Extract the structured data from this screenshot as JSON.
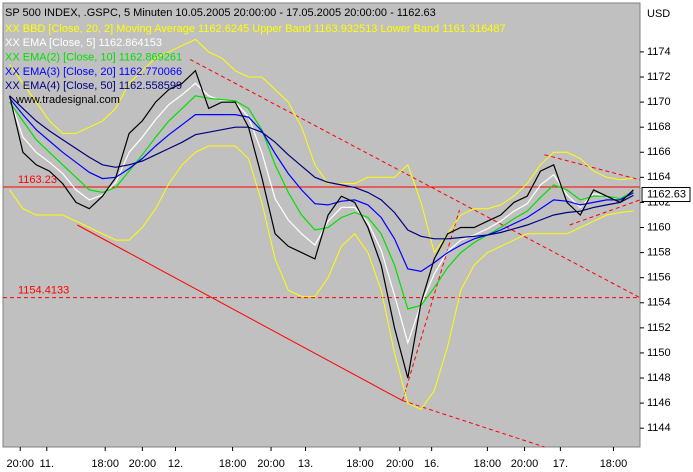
{
  "chart_data": {
    "type": "line",
    "title": "SP 500 INDEX, .GSPC, 5 Minuten   10.05.2005 20:00:00 - 17.05.2005 20:00:00 - 1162.63",
    "watermark": "www.tradesignal.com",
    "y_label": "USD",
    "xlim": [
      0,
      48
    ],
    "xticks": [
      {
        "value": 1.3,
        "label": "20:00"
      },
      {
        "value": 3.3,
        "label": "11."
      },
      {
        "value": 7.7,
        "label": "18:00"
      },
      {
        "value": 10.5,
        "label": "20:00"
      },
      {
        "value": 13,
        "label": "12."
      },
      {
        "value": 17.3,
        "label": "18:00"
      },
      {
        "value": 20.2,
        "label": "20:00"
      },
      {
        "value": 22.8,
        "label": "13."
      },
      {
        "value": 26.9,
        "label": "18:00"
      },
      {
        "value": 29.9,
        "label": "20:00"
      },
      {
        "value": 32.3,
        "label": "16."
      },
      {
        "value": 36.5,
        "label": "18:00"
      },
      {
        "value": 39.3,
        "label": "20:00"
      },
      {
        "value": 42,
        "label": "17."
      },
      {
        "value": 46,
        "label": "18:00"
      }
    ],
    "ylim": [
      1142.5,
      1177.9
    ],
    "yticks": [
      1144,
      1146,
      1148,
      1150,
      1152,
      1154,
      1156,
      1158,
      1160,
      1162,
      1164,
      1166,
      1168,
      1170,
      1172,
      1174
    ],
    "last": 1162.63,
    "x": [
      0.5,
      1.5,
      2.5,
      3.5,
      4.5,
      5.5,
      6.5,
      7.5,
      8.5,
      9.5,
      10.5,
      11.5,
      12.5,
      13.5,
      14.5,
      15.5,
      16.5,
      17.5,
      18.5,
      19.5,
      20.5,
      21.5,
      22.5,
      23.5,
      24.5,
      25.5,
      26.5,
      27.5,
      28.5,
      29.5,
      30.5,
      31.5,
      32.5,
      33.5,
      34.5,
      35.5,
      36.5,
      37.5,
      38.5,
      39.5,
      40.5,
      41.5,
      42.5,
      43.5,
      44.5,
      45.5,
      46.5,
      47.5
    ],
    "series": [
      {
        "name": "XX BBD [Close, 20, 2] Moving Average 1162.6245 Upper Band 1163.932513 Lower Band 1161.316487",
        "color": "#ffff00",
        "kind": "band",
        "upper": [
          1173,
          1171.5,
          1170,
          1168.5,
          1167.5,
          1167.5,
          1168,
          1168.5,
          1169.5,
          1171.5,
          1172.5,
          1173.5,
          1174,
          1174.5,
          1175,
          1174,
          1173.5,
          1172.5,
          1172,
          1172,
          1171,
          1170,
          1168,
          1165,
          1163.5,
          1163.5,
          1163.5,
          1164,
          1164,
          1164,
          1165,
          1162,
          1158,
          1159.5,
          1161,
          1161.5,
          1161.5,
          1161.8,
          1162.5,
          1163.5,
          1165,
          1166,
          1166,
          1165.5,
          1164.5,
          1164,
          1163.8,
          1163.93
        ],
        "lower": [
          1163,
          1161.5,
          1161,
          1161,
          1161,
          1160.5,
          1160,
          1159.5,
          1159,
          1159,
          1160,
          1161.5,
          1163.5,
          1165,
          1166,
          1166.5,
          1166.5,
          1166.5,
          1165.5,
          1162,
          1157.5,
          1155,
          1154.5,
          1154.5,
          1156,
          1158.5,
          1159.5,
          1158,
          1155,
          1150,
          1146,
          1145.5,
          1147,
          1150.5,
          1155,
          1157,
          1158,
          1158.5,
          1159,
          1159.5,
          1159.5,
          1159.5,
          1159.5,
          1160,
          1160.5,
          1161,
          1161.2,
          1161.32
        ]
      },
      {
        "name": "XX EMA [Close, 5] 1162.864153",
        "color": "#ffffff",
        "values": [
          1170.3,
          1167.2,
          1166,
          1165.2,
          1164.3,
          1163,
          1162.2,
          1162.6,
          1163.6,
          1166,
          1167.2,
          1168.6,
          1169.8,
          1170.6,
          1171.5,
          1170.5,
          1170.1,
          1170,
          1168.8,
          1166,
          1162.3,
          1160.6,
          1159.5,
          1158.6,
          1160.5,
          1161.6,
          1161.6,
          1160.4,
          1158.2,
          1154.6,
          1150.8,
          1153.9,
          1156.3,
          1158.1,
          1159,
          1159.4,
          1159.9,
          1160.5,
          1161.3,
          1161.9,
          1163.4,
          1164.2,
          1162.6,
          1161.6,
          1162.7,
          1162.5,
          1162.2,
          1162.86
        ]
      },
      {
        "name": "XX EMA(2) [Close, 10] 1162.869261",
        "color": "#00e000",
        "values": [
          1170,
          1168.5,
          1167,
          1166,
          1165,
          1164,
          1163,
          1162.8,
          1163.2,
          1164.5,
          1165.8,
          1167.2,
          1168.5,
          1169.5,
          1170.5,
          1170.3,
          1170.2,
          1170.1,
          1169.5,
          1167.8,
          1165,
          1162.8,
          1161,
          1159.8,
          1160,
          1160.8,
          1161.2,
          1160.8,
          1159.5,
          1157,
          1153.5,
          1153.8,
          1155.2,
          1156.8,
          1158,
          1158.8,
          1159.4,
          1160,
          1160.7,
          1161.3,
          1162.4,
          1163.4,
          1163,
          1162.2,
          1162.5,
          1162.5,
          1162.3,
          1162.87
        ]
      },
      {
        "name": "XX EMA(3) [Close, 20] 1162.770066",
        "color": "#0000ff",
        "values": [
          1170.3,
          1169,
          1167.8,
          1166.9,
          1166,
          1165.2,
          1164.4,
          1163.9,
          1164,
          1164.7,
          1165.5,
          1166.5,
          1167.4,
          1168.2,
          1169,
          1169,
          1169,
          1169,
          1168.8,
          1167.7,
          1165.9,
          1164.3,
          1163,
          1161.9,
          1161.8,
          1162.1,
          1162.2,
          1161.8,
          1160.8,
          1159.1,
          1156.7,
          1156.5,
          1157.2,
          1158,
          1158.6,
          1159.1,
          1159.4,
          1159.8,
          1160.3,
          1160.8,
          1161.5,
          1162.2,
          1162.1,
          1161.8,
          1162,
          1162.2,
          1162.2,
          1162.77
        ]
      },
      {
        "name": "XX EMA(4) [Close, 50] 1162.558599",
        "color": "#000080",
        "values": [
          1170.5,
          1169.5,
          1168.5,
          1167.7,
          1167,
          1166.3,
          1165.6,
          1165,
          1164.8,
          1165,
          1165.3,
          1165.8,
          1166.3,
          1166.8,
          1167.4,
          1167.6,
          1167.8,
          1168,
          1168,
          1167.6,
          1166.8,
          1165.8,
          1164.9,
          1164,
          1163.6,
          1163.4,
          1163.2,
          1162.8,
          1162.2,
          1161.2,
          1159.8,
          1159.3,
          1159.1,
          1159.1,
          1159.2,
          1159.3,
          1159.4,
          1159.6,
          1159.9,
          1160.2,
          1160.6,
          1161,
          1161.2,
          1161.3,
          1161.6,
          1161.8,
          1162,
          1162.56
        ]
      },
      {
        "color": "#000000",
        "values": [
          1170.5,
          1166,
          1165,
          1164.5,
          1163.5,
          1162,
          1161.5,
          1162.5,
          1164,
          1167.5,
          1168.5,
          1170,
          1171,
          1171.5,
          1172.5,
          1169.5,
          1170,
          1170,
          1168,
          1164,
          1159.5,
          1158.5,
          1158,
          1157.5,
          1161,
          1162.5,
          1162,
          1160,
          1157,
          1152,
          1148,
          1154,
          1157.5,
          1159.5,
          1160,
          1160,
          1160.5,
          1161,
          1162,
          1162.5,
          1164.5,
          1165,
          1162,
          1161,
          1163,
          1162.5,
          1162,
          1163
        ]
      }
    ],
    "hlines": [
      {
        "value": 1163.23,
        "dash": false
      },
      {
        "value": 1154.4133,
        "dash": true
      }
    ],
    "trendlines": [
      {
        "from": [
          5.6,
          1160.2
        ],
        "to": [
          30.1,
          1146.2
        ],
        "dash": false
      },
      {
        "from": [
          14.1,
          1173.4
        ],
        "to": [
          48,
          1154.4
        ],
        "dash": true
      },
      {
        "from": [
          30.1,
          1146.2
        ],
        "to": [
          40.8,
          1142.5
        ],
        "dash": true
      },
      {
        "from": [
          30.1,
          1146.2
        ],
        "to": [
          34.4,
          1161.4
        ],
        "dash": true
      },
      {
        "from": [
          40.8,
          1165.8
        ],
        "to": [
          48,
          1163.8
        ],
        "dash": true
      },
      {
        "from": [
          42.7,
          1160.2
        ],
        "to": [
          48,
          1162.2
        ],
        "dash": true
      }
    ],
    "line_color": "#ff0000"
  }
}
